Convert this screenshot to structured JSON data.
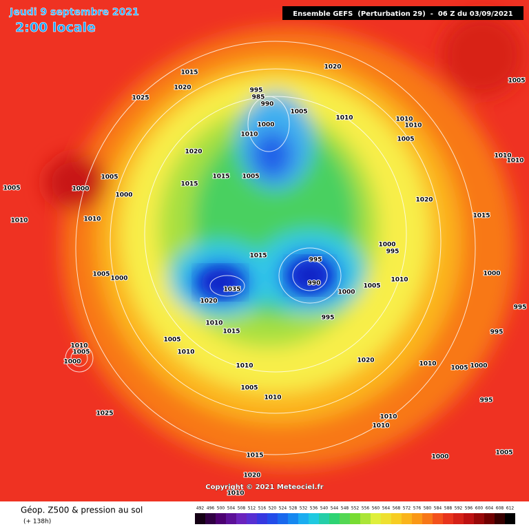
{
  "header": {
    "date": "Jeudi 9 septembre 2021",
    "time": "2:00 locale",
    "model": "Ensemble GEFS  (Perturbation 29)  -  06 Z du 03/09/2021"
  },
  "isobar_labels": [
    "1015",
    "1020",
    "1020",
    "1025",
    "995",
    "985",
    "990",
    "1005",
    "1010",
    "1010",
    "1010",
    "1000",
    "1010",
    "1005",
    "1020",
    "1005",
    "1015",
    "1015",
    "1005",
    "1005",
    "1000",
    "1000",
    "1010",
    "1010",
    "1020",
    "1015",
    "1010",
    "1010",
    "1005",
    "1000",
    "995",
    "995",
    "1015",
    "990",
    "1005",
    "1000",
    "1020",
    "1035",
    "1010",
    "1005",
    "1000",
    "1000",
    "995",
    "995",
    "1010",
    "1015",
    "995",
    "1005",
    "1010",
    "1010",
    "1005",
    "1000",
    "1010",
    "1020",
    "1010",
    "1005",
    "1000",
    "1005",
    "1010",
    "995",
    "1025",
    "1010",
    "1010",
    "1015",
    "1000",
    "1005",
    "1020",
    "1010"
  ],
  "copyright": "Copyright © 2021 Meteociel.fr",
  "footer": {
    "title": "Géop. Z500 & pression au sol",
    "lead": "(+ 138h)"
  },
  "colorbar": {
    "ticks": [
      492,
      496,
      500,
      504,
      508,
      512,
      516,
      520,
      524,
      528,
      532,
      536,
      540,
      544,
      548,
      552,
      556,
      560,
      564,
      568,
      572,
      576,
      580,
      584,
      588,
      592,
      596,
      600,
      604,
      608,
      612
    ]
  }
}
